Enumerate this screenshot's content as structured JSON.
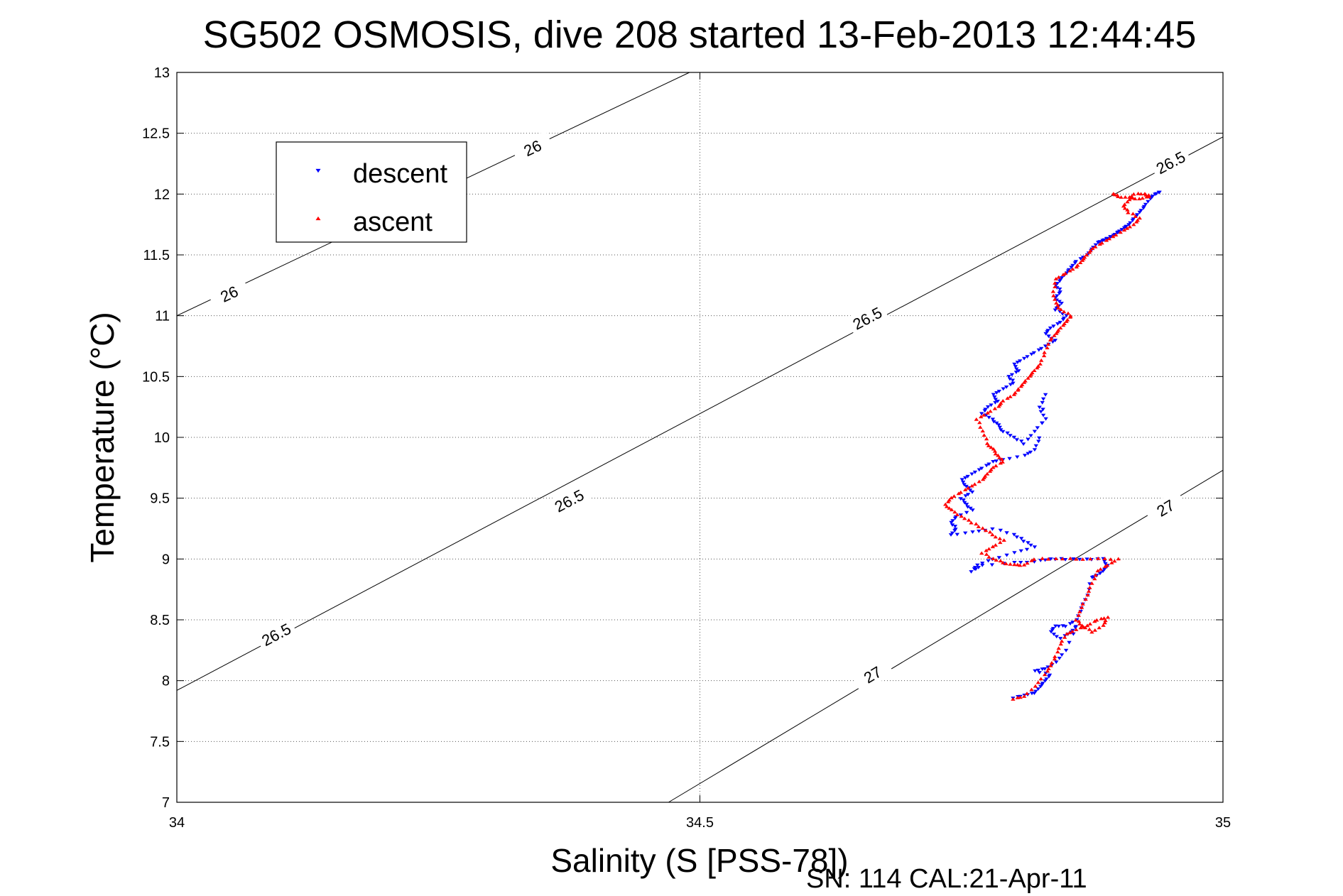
{
  "chart_data": {
    "type": "scatter",
    "title": "SG502 OSMOSIS, dive 208 started 13-Feb-2013 12:44:45",
    "xlabel": "Salinity (S [PSS-78])",
    "ylabel": "Temperature (°C)",
    "footer": "SN: 114  CAL:21-Apr-11",
    "xlim": [
      34,
      35
    ],
    "ylim": [
      7,
      13
    ],
    "xticks": [
      "34",
      "34.5",
      "35"
    ],
    "yticks": [
      "7",
      "7.5",
      "8",
      "8.5",
      "9",
      "9.5",
      "10",
      "10.5",
      "11",
      "11.5",
      "12",
      "12.5",
      "13"
    ],
    "grid": true,
    "legend_position": "top-left",
    "contours": [
      {
        "label": "26",
        "points": [
          [
            34.0,
            11.0
          ],
          [
            34.49,
            13.0
          ]
        ],
        "labels_at": [
          [
            34.05,
            11.18
          ],
          [
            34.34,
            12.38
          ]
        ]
      },
      {
        "label": "26.5",
        "points": [
          [
            34.0,
            7.92
          ],
          [
            35.0,
            12.47
          ]
        ],
        "labels_at": [
          [
            34.095,
            8.38
          ],
          [
            34.375,
            9.48
          ],
          [
            34.66,
            10.98
          ],
          [
            34.95,
            12.26
          ]
        ]
      },
      {
        "label": "27",
        "points": [
          [
            34.47,
            7.0
          ],
          [
            35.0,
            9.73
          ]
        ],
        "labels_at": [
          [
            34.665,
            8.05
          ],
          [
            34.945,
            9.42
          ]
        ]
      }
    ],
    "series": [
      {
        "name": "descent",
        "marker": "triangle-down",
        "color": "#0000ff",
        "points": [
          [
            34.94,
            12.02
          ],
          [
            34.935,
            12.0
          ],
          [
            34.93,
            11.96
          ],
          [
            34.925,
            11.9
          ],
          [
            34.92,
            11.85
          ],
          [
            34.915,
            11.8
          ],
          [
            34.91,
            11.75
          ],
          [
            34.905,
            11.72
          ],
          [
            34.9,
            11.69
          ],
          [
            34.895,
            11.66
          ],
          [
            34.89,
            11.64
          ],
          [
            34.885,
            11.62
          ],
          [
            34.88,
            11.6
          ],
          [
            34.875,
            11.55
          ],
          [
            34.87,
            11.5
          ],
          [
            34.86,
            11.45
          ],
          [
            34.855,
            11.4
          ],
          [
            34.85,
            11.35
          ],
          [
            34.845,
            11.3
          ],
          [
            34.84,
            11.25
          ],
          [
            34.845,
            11.2
          ],
          [
            34.84,
            11.15
          ],
          [
            34.845,
            11.1
          ],
          [
            34.84,
            11.05
          ],
          [
            34.85,
            11.0
          ],
          [
            34.845,
            10.95
          ],
          [
            34.835,
            10.9
          ],
          [
            34.83,
            10.85
          ],
          [
            34.84,
            10.8
          ],
          [
            34.83,
            10.75
          ],
          [
            34.82,
            10.7
          ],
          [
            34.81,
            10.65
          ],
          [
            34.8,
            10.6
          ],
          [
            34.805,
            10.55
          ],
          [
            34.795,
            10.5
          ],
          [
            34.8,
            10.45
          ],
          [
            34.79,
            10.4
          ],
          [
            34.78,
            10.35
          ],
          [
            34.785,
            10.3
          ],
          [
            34.775,
            10.25
          ],
          [
            34.77,
            10.2
          ],
          [
            34.78,
            10.15
          ],
          [
            34.785,
            10.1
          ],
          [
            34.79,
            10.05
          ],
          [
            34.8,
            10.0
          ],
          [
            34.81,
            9.95
          ],
          [
            34.82,
            10.05
          ],
          [
            34.83,
            10.15
          ],
          [
            34.825,
            10.25
          ],
          [
            34.83,
            10.35
          ],
          [
            34.825,
            10.0
          ],
          [
            34.82,
            9.9
          ],
          [
            34.81,
            9.85
          ],
          [
            34.79,
            9.82
          ],
          [
            34.78,
            9.8
          ],
          [
            34.77,
            9.75
          ],
          [
            34.76,
            9.7
          ],
          [
            34.75,
            9.65
          ],
          [
            34.755,
            9.6
          ],
          [
            34.76,
            9.55
          ],
          [
            34.75,
            9.5
          ],
          [
            34.755,
            9.45
          ],
          [
            34.76,
            9.4
          ],
          [
            34.745,
            9.35
          ],
          [
            34.74,
            9.3
          ],
          [
            34.745,
            9.25
          ],
          [
            34.74,
            9.2
          ],
          [
            34.76,
            9.22
          ],
          [
            34.78,
            9.25
          ],
          [
            34.8,
            9.2
          ],
          [
            34.81,
            9.15
          ],
          [
            34.82,
            9.1
          ],
          [
            34.8,
            9.05
          ],
          [
            34.78,
            9.0
          ],
          [
            34.765,
            8.95
          ],
          [
            34.76,
            8.9
          ],
          [
            34.77,
            8.95
          ],
          [
            34.8,
            8.97
          ],
          [
            34.82,
            8.98
          ],
          [
            34.835,
            9.0
          ],
          [
            34.85,
            9.0
          ],
          [
            34.87,
            9.0
          ],
          [
            34.885,
            9.0
          ],
          [
            34.89,
            8.95
          ],
          [
            34.885,
            8.9
          ],
          [
            34.88,
            8.87
          ],
          [
            34.875,
            8.85
          ],
          [
            34.87,
            8.7
          ],
          [
            34.865,
            8.6
          ],
          [
            34.86,
            8.5
          ],
          [
            34.85,
            8.45
          ],
          [
            34.84,
            8.45
          ],
          [
            34.835,
            8.4
          ],
          [
            34.845,
            8.35
          ],
          [
            34.855,
            8.4
          ],
          [
            34.86,
            8.45
          ],
          [
            34.85,
            8.25
          ],
          [
            34.84,
            8.15
          ],
          [
            34.83,
            8.1
          ],
          [
            34.82,
            8.08
          ],
          [
            34.835,
            8.05
          ],
          [
            34.83,
            8.0
          ],
          [
            34.825,
            7.95
          ],
          [
            34.82,
            7.9
          ],
          [
            34.81,
            7.88
          ],
          [
            34.8,
            7.86
          ]
        ]
      },
      {
        "name": "ascent",
        "marker": "triangle-up",
        "color": "#ff0000",
        "points": [
          [
            34.8,
            7.85
          ],
          [
            34.81,
            7.87
          ],
          [
            34.82,
            7.95
          ],
          [
            34.83,
            8.05
          ],
          [
            34.835,
            8.12
          ],
          [
            34.84,
            8.2
          ],
          [
            34.845,
            8.3
          ],
          [
            34.85,
            8.38
          ],
          [
            34.86,
            8.42
          ],
          [
            34.87,
            8.45
          ],
          [
            34.88,
            8.5
          ],
          [
            34.89,
            8.52
          ],
          [
            34.885,
            8.45
          ],
          [
            34.875,
            8.4
          ],
          [
            34.865,
            8.45
          ],
          [
            34.86,
            8.5
          ],
          [
            34.865,
            8.6
          ],
          [
            34.87,
            8.7
          ],
          [
            34.875,
            8.8
          ],
          [
            34.88,
            8.9
          ],
          [
            34.89,
            8.95
          ],
          [
            34.9,
            9.0
          ],
          [
            34.88,
            9.0
          ],
          [
            34.86,
            9.0
          ],
          [
            34.84,
            9.0
          ],
          [
            34.82,
            9.0
          ],
          [
            34.81,
            8.95
          ],
          [
            34.8,
            8.95
          ],
          [
            34.79,
            8.97
          ],
          [
            34.78,
            9.0
          ],
          [
            34.77,
            9.05
          ],
          [
            34.78,
            9.1
          ],
          [
            34.79,
            9.15
          ],
          [
            34.78,
            9.2
          ],
          [
            34.77,
            9.25
          ],
          [
            34.76,
            9.3
          ],
          [
            34.75,
            9.35
          ],
          [
            34.74,
            9.4
          ],
          [
            34.735,
            9.45
          ],
          [
            34.74,
            9.5
          ],
          [
            34.75,
            9.55
          ],
          [
            34.76,
            9.6
          ],
          [
            34.77,
            9.65
          ],
          [
            34.775,
            9.7
          ],
          [
            34.78,
            9.75
          ],
          [
            34.79,
            9.8
          ],
          [
            34.785,
            9.85
          ],
          [
            34.78,
            9.9
          ],
          [
            34.775,
            9.95
          ],
          [
            34.77,
            10.05
          ],
          [
            34.765,
            10.15
          ],
          [
            34.775,
            10.2
          ],
          [
            34.785,
            10.25
          ],
          [
            34.79,
            10.3
          ],
          [
            34.8,
            10.35
          ],
          [
            34.805,
            10.4
          ],
          [
            34.81,
            10.45
          ],
          [
            34.815,
            10.5
          ],
          [
            34.82,
            10.55
          ],
          [
            34.825,
            10.6
          ],
          [
            34.83,
            10.7
          ],
          [
            34.835,
            10.8
          ],
          [
            34.84,
            10.85
          ],
          [
            34.845,
            10.9
          ],
          [
            34.85,
            10.95
          ],
          [
            34.855,
            11.0
          ],
          [
            34.845,
            11.05
          ],
          [
            34.84,
            11.1
          ],
          [
            34.838,
            11.2
          ],
          [
            34.84,
            11.3
          ],
          [
            34.85,
            11.35
          ],
          [
            34.86,
            11.4
          ],
          [
            34.865,
            11.45
          ],
          [
            34.87,
            11.5
          ],
          [
            34.875,
            11.55
          ],
          [
            34.885,
            11.6
          ],
          [
            34.895,
            11.65
          ],
          [
            34.905,
            11.7
          ],
          [
            34.915,
            11.75
          ],
          [
            34.92,
            11.8
          ],
          [
            34.91,
            11.85
          ],
          [
            34.905,
            11.9
          ],
          [
            34.91,
            11.95
          ],
          [
            34.915,
            12.0
          ],
          [
            34.925,
            12.0
          ],
          [
            34.93,
            11.98
          ],
          [
            34.92,
            11.96
          ],
          [
            34.91,
            11.97
          ],
          [
            34.9,
            11.98
          ],
          [
            34.895,
            12.0
          ]
        ]
      }
    ]
  }
}
